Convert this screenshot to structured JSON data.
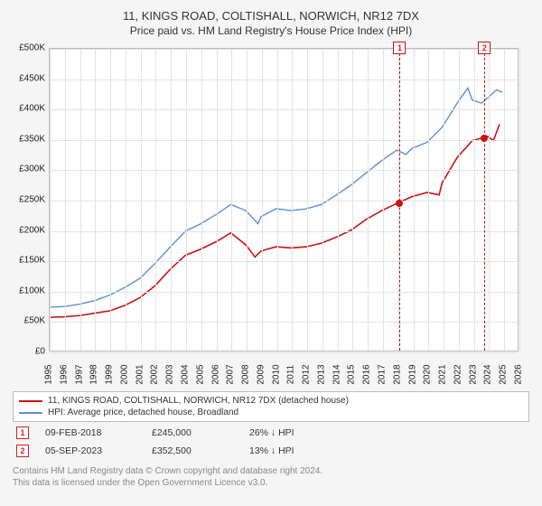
{
  "title": "11, KINGS ROAD, COLTISHALL, NORWICH, NR12 7DX",
  "subtitle": "Price paid vs. HM Land Registry's House Price Index (HPI)",
  "chart": {
    "type": "line",
    "background_color": "#ffffff",
    "page_background": "#f5f5f5",
    "grid_color": "#e2e2e2",
    "border_color": "#bbbbbb",
    "y_axis": {
      "min": 0,
      "max": 500000,
      "tick_step": 50000,
      "labels": [
        "£0",
        "£50K",
        "£100K",
        "£150K",
        "£200K",
        "£250K",
        "£300K",
        "£350K",
        "£400K",
        "£450K",
        "£500K"
      ],
      "label_fontsize": 10
    },
    "x_axis": {
      "min": 1995,
      "max": 2026,
      "tick_step": 1,
      "labels": [
        "1995",
        "1996",
        "1997",
        "1998",
        "1999",
        "2000",
        "2001",
        "2002",
        "2003",
        "2004",
        "2005",
        "2006",
        "2007",
        "2008",
        "2009",
        "2010",
        "2011",
        "2012",
        "2013",
        "2014",
        "2015",
        "2016",
        "2017",
        "2018",
        "2019",
        "2020",
        "2021",
        "2022",
        "2023",
        "2024",
        "2025",
        "2026"
      ],
      "label_fontsize": 10,
      "label_rotation": -90
    },
    "series": [
      {
        "name": "price_paid",
        "label": "11, KINGS ROAD, COLTISHALL, NORWICH, NR12 7DX (detached house)",
        "color": "#cc1111",
        "line_width": 1.6,
        "data": [
          [
            1995,
            55000
          ],
          [
            1996,
            56000
          ],
          [
            1997,
            58000
          ],
          [
            1998,
            62000
          ],
          [
            1999,
            66000
          ],
          [
            2000,
            75000
          ],
          [
            2001,
            88000
          ],
          [
            2002,
            108000
          ],
          [
            2003,
            135000
          ],
          [
            2004,
            158000
          ],
          [
            2005,
            168000
          ],
          [
            2006,
            180000
          ],
          [
            2007,
            195000
          ],
          [
            2008,
            175000
          ],
          [
            2008.6,
            155000
          ],
          [
            2009,
            165000
          ],
          [
            2010,
            172000
          ],
          [
            2011,
            170000
          ],
          [
            2012,
            172000
          ],
          [
            2013,
            178000
          ],
          [
            2014,
            188000
          ],
          [
            2015,
            200000
          ],
          [
            2016,
            218000
          ],
          [
            2017,
            232000
          ],
          [
            2018.1,
            245000
          ],
          [
            2019,
            255000
          ],
          [
            2020,
            262000
          ],
          [
            2020.8,
            258000
          ],
          [
            2021,
            278000
          ],
          [
            2022,
            320000
          ],
          [
            2023,
            348000
          ],
          [
            2023.7,
            352500
          ],
          [
            2024,
            355000
          ],
          [
            2024.4,
            348000
          ],
          [
            2024.8,
            375000
          ]
        ]
      },
      {
        "name": "hpi",
        "label": "HPI: Average price, detached house, Broadland",
        "color": "#5b8fd6",
        "line_width": 1.4,
        "data": [
          [
            1995,
            72000
          ],
          [
            1996,
            73000
          ],
          [
            1997,
            77000
          ],
          [
            1998,
            83000
          ],
          [
            1999,
            92000
          ],
          [
            2000,
            105000
          ],
          [
            2001,
            120000
          ],
          [
            2002,
            145000
          ],
          [
            2003,
            172000
          ],
          [
            2004,
            198000
          ],
          [
            2005,
            210000
          ],
          [
            2006,
            225000
          ],
          [
            2007,
            242000
          ],
          [
            2008,
            232000
          ],
          [
            2008.8,
            210000
          ],
          [
            2009,
            222000
          ],
          [
            2010,
            235000
          ],
          [
            2011,
            232000
          ],
          [
            2012,
            235000
          ],
          [
            2013,
            242000
          ],
          [
            2014,
            258000
          ],
          [
            2015,
            275000
          ],
          [
            2016,
            295000
          ],
          [
            2017,
            315000
          ],
          [
            2018,
            332000
          ],
          [
            2018.6,
            325000
          ],
          [
            2019,
            335000
          ],
          [
            2020,
            345000
          ],
          [
            2021,
            370000
          ],
          [
            2022,
            410000
          ],
          [
            2022.7,
            435000
          ],
          [
            2023,
            415000
          ],
          [
            2023.6,
            410000
          ],
          [
            2024,
            418000
          ],
          [
            2024.6,
            432000
          ],
          [
            2025,
            428000
          ]
        ]
      }
    ],
    "event_markers": [
      {
        "id": "1",
        "x": 2018.1,
        "y": 245000,
        "point_color": "#cc1111"
      },
      {
        "id": "2",
        "x": 2023.7,
        "y": 352500,
        "point_color": "#cc1111"
      }
    ],
    "marker_box_border": "#cc1111",
    "marker_dash_color": "#cc1111"
  },
  "legend": {
    "items": [
      {
        "color": "#cc1111",
        "label": "11, KINGS ROAD, COLTISHALL, NORWICH, NR12 7DX (detached house)"
      },
      {
        "color": "#5b8fd6",
        "label": "HPI: Average price, detached house, Broadland"
      }
    ],
    "fontsize": 10
  },
  "events_table": {
    "rows": [
      {
        "id": "1",
        "date": "09-FEB-2018",
        "price": "£245,000",
        "pct": "26% ↓ HPI"
      },
      {
        "id": "2",
        "date": "05-SEP-2023",
        "price": "£352,500",
        "pct": "13% ↓ HPI"
      }
    ]
  },
  "footer": {
    "line1": "Contains HM Land Registry data © Crown copyright and database right 2024.",
    "line2": "This data is licensed under the Open Government Licence v3.0."
  }
}
